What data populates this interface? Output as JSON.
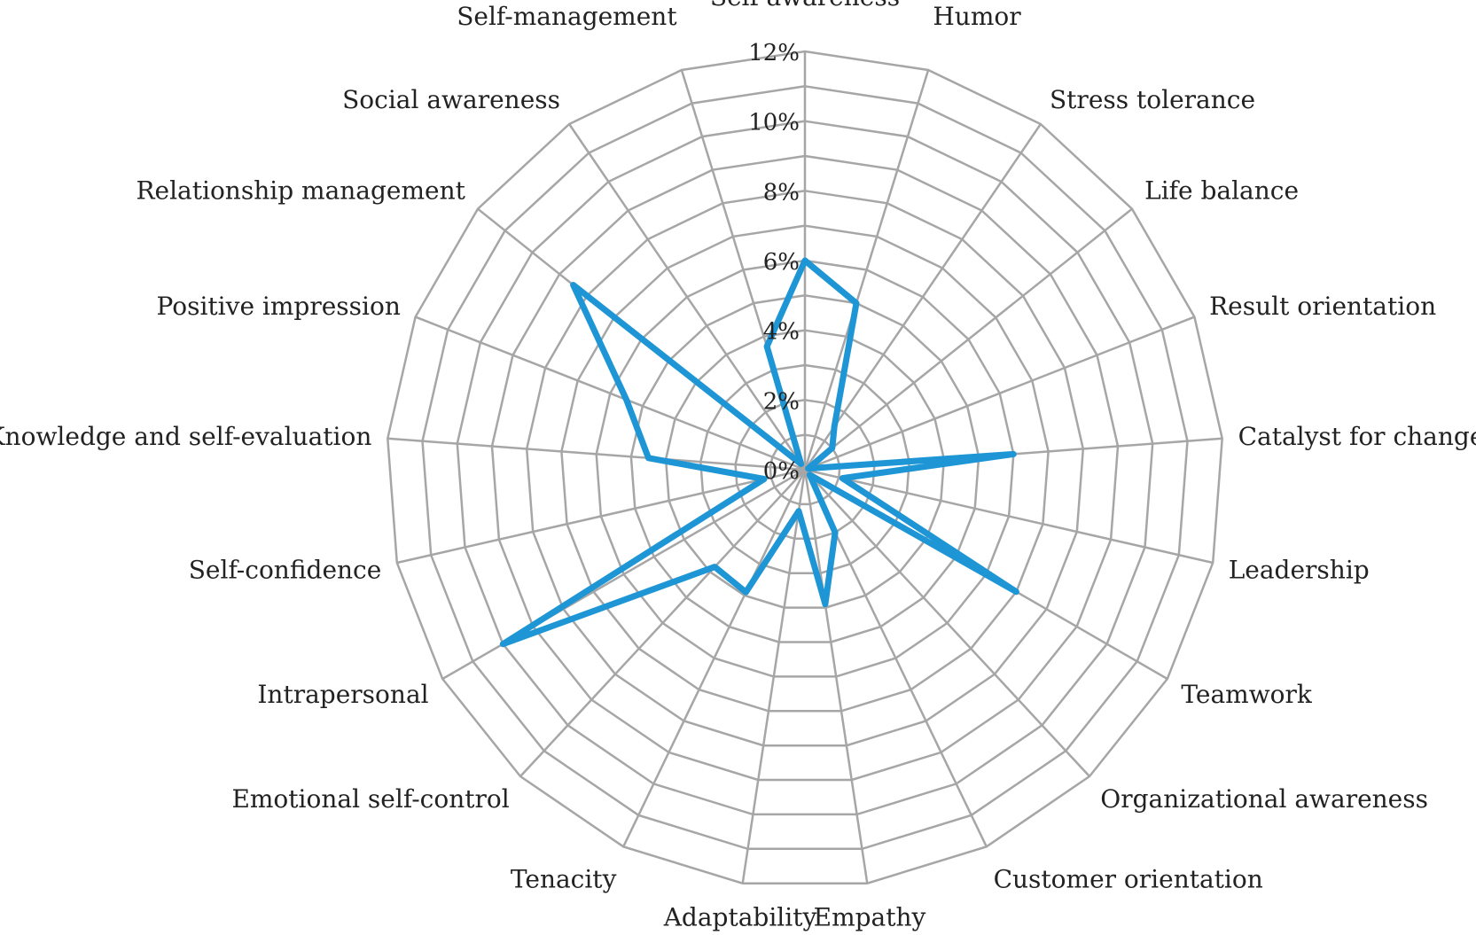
{
  "chart_data": {
    "type": "radar",
    "categories": [
      "Self-awareness",
      "Humor",
      "Stress tolerance",
      "Life balance",
      "Result orientation",
      "Catalyst for change",
      "Leadership",
      "Teamwork",
      "Organizational awareness",
      "Customer orientation",
      "Empathy",
      "Adaptability",
      "Tenacity",
      "Emotional self-control",
      "Intrapersonal",
      "Self-confidence",
      "Knowledge and self-evaluation",
      "Positive impression",
      "Relationship management",
      "Social awareness",
      "Self-management"
    ],
    "series": [
      {
        "values": [
          6.0,
          5.0,
          1.5,
          1.0,
          0.1,
          6.0,
          1.1,
          7.0,
          0.2,
          2.0,
          3.9,
          1.2,
          3.9,
          3.8,
          10.0,
          1.2,
          4.5,
          5.5,
          8.5,
          0.2,
          3.7
        ]
      }
    ],
    "ticks": [
      "0%",
      "2%",
      "4%",
      "6%",
      "8%",
      "10%",
      "12%"
    ],
    "rmax": 12,
    "grid_steps": 12,
    "grid": true,
    "legend": "none",
    "colors": {
      "series": "#1e96d6",
      "grid": "#a6a6a6"
    }
  }
}
